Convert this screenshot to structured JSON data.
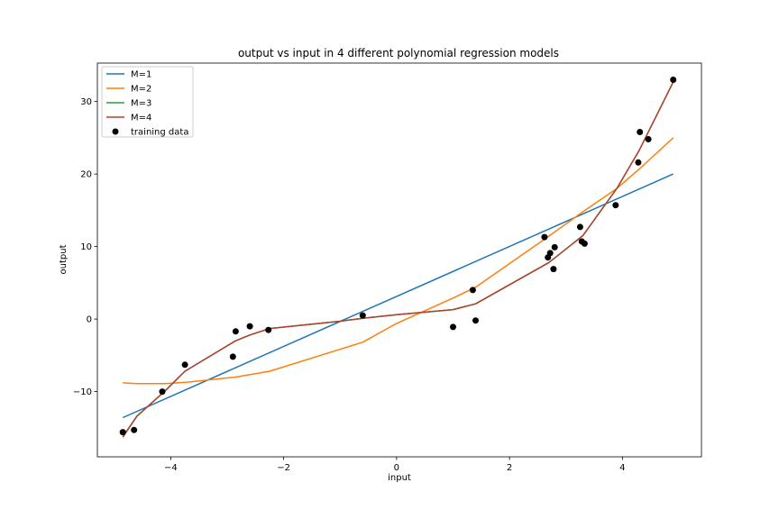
{
  "chart_data": {
    "type": "line",
    "title": "output vs input in 4 different polynomial regression models",
    "xlabel": "input",
    "ylabel": "output",
    "xlim": [
      -5.3,
      5.4
    ],
    "ylim": [
      -19.0,
      35.3
    ],
    "xticks": [
      -4,
      -2,
      0,
      2,
      4
    ],
    "yticks": [
      -10,
      0,
      10,
      20,
      30
    ],
    "grid": false,
    "legend_position": "top-left",
    "series": [
      {
        "name": "M=1",
        "color": "#1f77b4",
        "x": [
          -4.85,
          4.9
        ],
        "y": [
          -13.6,
          20.0
        ]
      },
      {
        "name": "M=2",
        "color": "#ff7f0e",
        "x": [
          -4.85,
          -4.6,
          -4.1,
          -3.7,
          -2.85,
          -2.25,
          -0.6,
          0.0,
          1.0,
          1.4,
          2.6,
          3.3,
          3.9,
          4.3,
          4.9
        ],
        "y": [
          -8.8,
          -8.9,
          -8.9,
          -8.7,
          -8.0,
          -7.2,
          -3.2,
          -0.6,
          2.9,
          4.4,
          10.9,
          14.8,
          18.0,
          20.7,
          25.0
        ]
      },
      {
        "name": "M=3",
        "color": "#2ca02c",
        "x": [
          -4.85,
          -4.6,
          -4.1,
          -3.75,
          -2.85,
          -2.6,
          -2.25,
          -1.0,
          -0.6,
          0.0,
          1.0,
          1.4,
          2.7,
          3.3,
          3.9,
          4.3,
          4.9
        ],
        "y": [
          -16.2,
          -13.4,
          -9.9,
          -7.2,
          -3.0,
          -2.2,
          -1.3,
          -0.3,
          0.1,
          0.6,
          1.3,
          2.1,
          7.8,
          11.5,
          18.0,
          23.3,
          32.7
        ]
      },
      {
        "name": "M=4",
        "color": "#b2402f",
        "x": [
          -4.85,
          -4.6,
          -4.1,
          -3.75,
          -2.85,
          -2.6,
          -2.25,
          -1.0,
          -0.6,
          0.0,
          1.0,
          1.4,
          2.7,
          3.3,
          3.9,
          4.3,
          4.9
        ],
        "y": [
          -16.3,
          -13.4,
          -9.9,
          -7.2,
          -3.0,
          -2.2,
          -1.3,
          -0.3,
          0.1,
          0.6,
          1.3,
          2.1,
          7.8,
          11.5,
          18.0,
          23.3,
          32.7
        ]
      }
    ],
    "points": {
      "name": "training data",
      "color": "#000000",
      "x": [
        -4.85,
        -4.65,
        -4.15,
        -3.75,
        -2.9,
        -2.85,
        -2.6,
        -2.27,
        -0.6,
        1.0,
        1.35,
        1.4,
        2.62,
        2.68,
        2.72,
        2.78,
        2.8,
        3.25,
        3.28,
        3.33,
        3.88,
        4.28,
        4.31,
        4.46,
        4.9
      ],
      "y": [
        -15.6,
        -15.3,
        -10.0,
        -6.3,
        -5.2,
        -1.7,
        -1.0,
        -1.5,
        0.5,
        -1.1,
        4.0,
        -0.2,
        11.3,
        8.5,
        9.1,
        6.9,
        9.9,
        12.7,
        10.7,
        10.4,
        15.7,
        21.6,
        25.8,
        24.8,
        33.0
      ]
    }
  }
}
